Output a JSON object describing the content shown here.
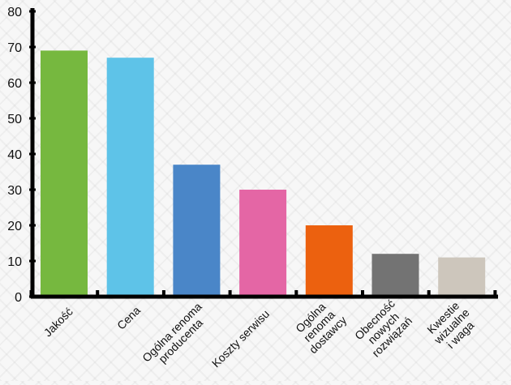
{
  "chart_data": {
    "type": "bar",
    "title": "",
    "xlabel": "",
    "ylabel": "",
    "ylim": [
      0,
      80
    ],
    "yticks": [
      0,
      10,
      20,
      30,
      40,
      50,
      60,
      70,
      80
    ],
    "categories": [
      [
        "Jakość"
      ],
      [
        "Cena"
      ],
      [
        "Ogólna renoma",
        "producenta"
      ],
      [
        "Koszty serwisu"
      ],
      [
        "Ogólna",
        "renoma",
        "dostawcy"
      ],
      [
        "Obecność",
        "nowych",
        "rozwiązań"
      ],
      [
        "Kwestie",
        "wizualne",
        "i waga"
      ]
    ],
    "values": [
      69,
      67,
      37,
      30,
      20,
      12,
      11
    ],
    "colors": [
      "#76b83f",
      "#5ec3e8",
      "#4a86c8",
      "#e466a5",
      "#ec610f",
      "#737373",
      "#cdc6bc"
    ],
    "grid": false,
    "legend": "none"
  }
}
